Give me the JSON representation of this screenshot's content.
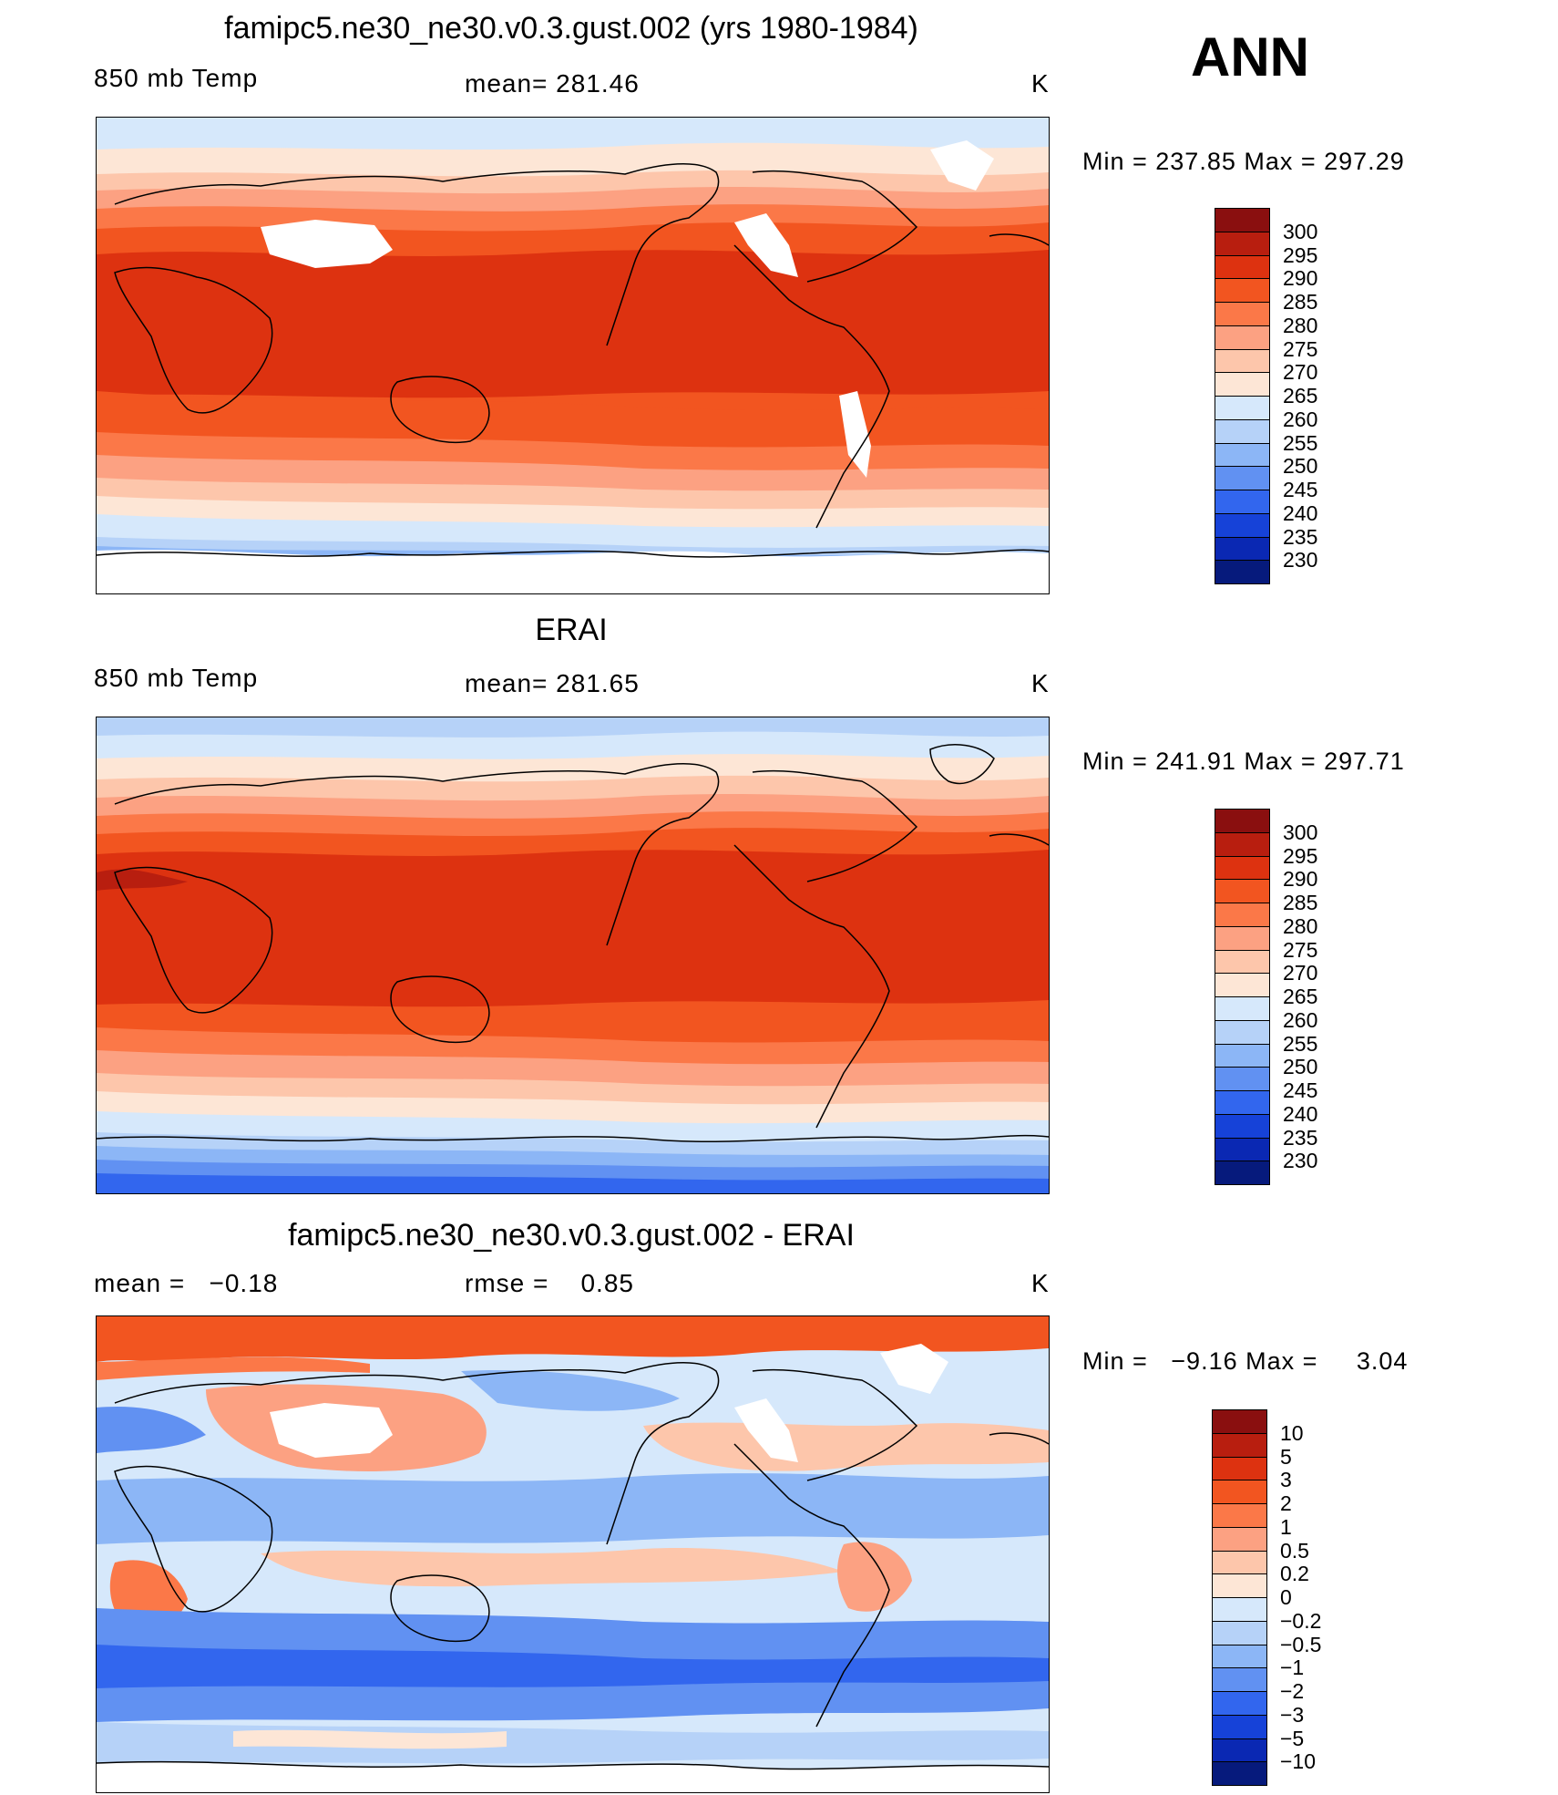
{
  "season": "ANN",
  "panels": [
    {
      "id": "model",
      "title": "famipc5.ne30_ne30.v0.3.gust.002 (yrs 1980-1984)",
      "left_label": "850 mb Temp",
      "center_label": "mean= 281.46",
      "units": "K",
      "min_max": "Min = 237.85 Max = 297.29",
      "colorbar": {
        "labels": [
          "300",
          "295",
          "290",
          "285",
          "280",
          "275",
          "270",
          "265",
          "260",
          "255",
          "250",
          "245",
          "240",
          "235",
          "230"
        ],
        "colors": [
          "#8a0f0f",
          "#b81e0f",
          "#dd3210",
          "#f25520",
          "#fb7848",
          "#fca182",
          "#fdc6ab",
          "#fde6d6",
          "#d6e8fb",
          "#b6d2f8",
          "#8cb6f6",
          "#6191f2",
          "#3266ee",
          "#1642d8",
          "#0a28b3",
          "#061a7c"
        ]
      }
    },
    {
      "id": "obs",
      "title": "ERAI",
      "left_label": "850 mb Temp",
      "center_label": "mean= 281.65",
      "units": "K",
      "min_max": "Min = 241.91 Max = 297.71",
      "colorbar": {
        "labels": [
          "300",
          "295",
          "290",
          "285",
          "280",
          "275",
          "270",
          "265",
          "260",
          "255",
          "250",
          "245",
          "240",
          "235",
          "230"
        ],
        "colors": [
          "#8a0f0f",
          "#b81e0f",
          "#dd3210",
          "#f25520",
          "#fb7848",
          "#fca182",
          "#fdc6ab",
          "#fde6d6",
          "#d6e8fb",
          "#b6d2f8",
          "#8cb6f6",
          "#6191f2",
          "#3266ee",
          "#1642d8",
          "#0a28b3",
          "#061a7c"
        ]
      }
    },
    {
      "id": "diff",
      "title": "famipc5.ne30_ne30.v0.3.gust.002 - ERAI",
      "left_label": "mean =   −0.18",
      "center_label": "rmse =    0.85",
      "units": "K",
      "min_max": "Min =   −9.16 Max =     3.04",
      "colorbar": {
        "labels": [
          "10",
          "5",
          "3",
          "2",
          "1",
          "0.5",
          "0.2",
          "0",
          "−0.2",
          "−0.5",
          "−1",
          "−2",
          "−3",
          "−5",
          "−10"
        ],
        "colors": [
          "#8a0f0f",
          "#b81e0f",
          "#dd3210",
          "#f25520",
          "#fb7848",
          "#fca182",
          "#fdc6ab",
          "#fde6d6",
          "#d6e8fb",
          "#b6d2f8",
          "#8cb6f6",
          "#6191f2",
          "#3266ee",
          "#1642d8",
          "#0a28b3",
          "#061a7c"
        ]
      }
    }
  ]
}
